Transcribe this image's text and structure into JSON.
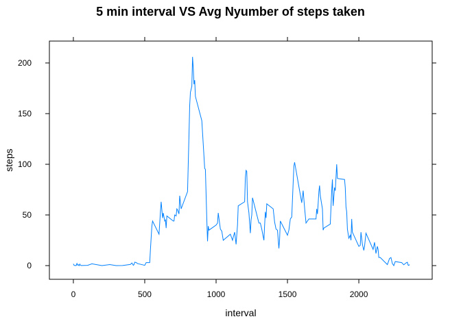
{
  "chart_data": {
    "type": "line",
    "title": "5 min interval VS Avg Nyumber of steps taken",
    "x_label": "interval",
    "y_label": "steps",
    "color": "#0080ff",
    "x": [
      0,
      5,
      10,
      15,
      20,
      25,
      30,
      35,
      40,
      45,
      50,
      55,
      100,
      130,
      200,
      255,
      300,
      345,
      400,
      410,
      420,
      425,
      430,
      440,
      450,
      500,
      505,
      510,
      525,
      535,
      540,
      550,
      555,
      600,
      610,
      615,
      625,
      630,
      640,
      645,
      650,
      655,
      700,
      705,
      710,
      720,
      725,
      730,
      740,
      745,
      755,
      800,
      810,
      815,
      820,
      830,
      835,
      840,
      845,
      850,
      855,
      900,
      915,
      920,
      925,
      935,
      940,
      945,
      950,
      1000,
      1010,
      1015,
      1030,
      1035,
      1040,
      1050,
      1100,
      1115,
      1120,
      1130,
      1140,
      1150,
      1155,
      1200,
      1205,
      1210,
      1215,
      1220,
      1230,
      1240,
      1245,
      1250,
      1255,
      1300,
      1310,
      1320,
      1335,
      1340,
      1345,
      1350,
      1355,
      1400,
      1410,
      1420,
      1430,
      1440,
      1445,
      1450,
      1500,
      1510,
      1520,
      1530,
      1535,
      1540,
      1545,
      1550,
      1600,
      1610,
      1620,
      1630,
      1640,
      1650,
      1700,
      1705,
      1710,
      1715,
      1720,
      1725,
      1730,
      1745,
      1750,
      1755,
      1800,
      1810,
      1815,
      1820,
      1825,
      1830,
      1835,
      1845,
      1850,
      1900,
      1905,
      1910,
      1915,
      1920,
      1930,
      1940,
      1945,
      1950,
      1955,
      2000,
      2010,
      2015,
      2025,
      2035,
      2040,
      2050,
      2100,
      2110,
      2120,
      2130,
      2135,
      2140,
      2150,
      2200,
      2215,
      2225,
      2235,
      2245,
      2255,
      2300,
      2315,
      2330,
      2340,
      2345,
      2350,
      2355
    ],
    "values": [
      1.7,
      0.3,
      0.1,
      0.2,
      0.1,
      2.1,
      0.5,
      0.9,
      0,
      1.5,
      0.3,
      0.1,
      0.3,
      1.8,
      0,
      1,
      0,
      0.1,
      1.2,
      2.6,
      0.3,
      1,
      3.4,
      3,
      2,
      0.3,
      1.6,
      3,
      3,
      3,
      16,
      39,
      44,
      31,
      53,
      63,
      47,
      52,
      44,
      45,
      37,
      49,
      44,
      44,
      50,
      49,
      56,
      55,
      51,
      69,
      56,
      73,
      129,
      158,
      171,
      177,
      206,
      195,
      179,
      183,
      167,
      143,
      108,
      96,
      95,
      45,
      24,
      39,
      35,
      40,
      42,
      52,
      36,
      35,
      34,
      25,
      31,
      25,
      28,
      33,
      21,
      40,
      59,
      63,
      87,
      94,
      93,
      63,
      52,
      32,
      45,
      50,
      67,
      42,
      42,
      36,
      25,
      40,
      53,
      47,
      61,
      56,
      43,
      36,
      35,
      17,
      26,
      44,
      30,
      35,
      46,
      48,
      65,
      82,
      98,
      102,
      62,
      74,
      57,
      42,
      44,
      46,
      46,
      56,
      51,
      61,
      73,
      79,
      69,
      56,
      35,
      37,
      41,
      74,
      85,
      59,
      68,
      77,
      74,
      100,
      86,
      85,
      77,
      58,
      53,
      36,
      27,
      30,
      25,
      46,
      33,
      19,
      20,
      33,
      21,
      15,
      19,
      32,
      16,
      23,
      12,
      19,
      16,
      8,
      8,
      1,
      7,
      8,
      2,
      0,
      4,
      3,
      0.8,
      2.6,
      3.3,
      0.6,
      0.2,
      1.1
    ],
    "xlim": [
      -168,
      2514
    ],
    "ylim": [
      -13.5,
      221.6
    ],
    "xticks": [
      0,
      500,
      1000,
      1500,
      2000
    ],
    "yticks": [
      0,
      50,
      100,
      150,
      200
    ]
  }
}
